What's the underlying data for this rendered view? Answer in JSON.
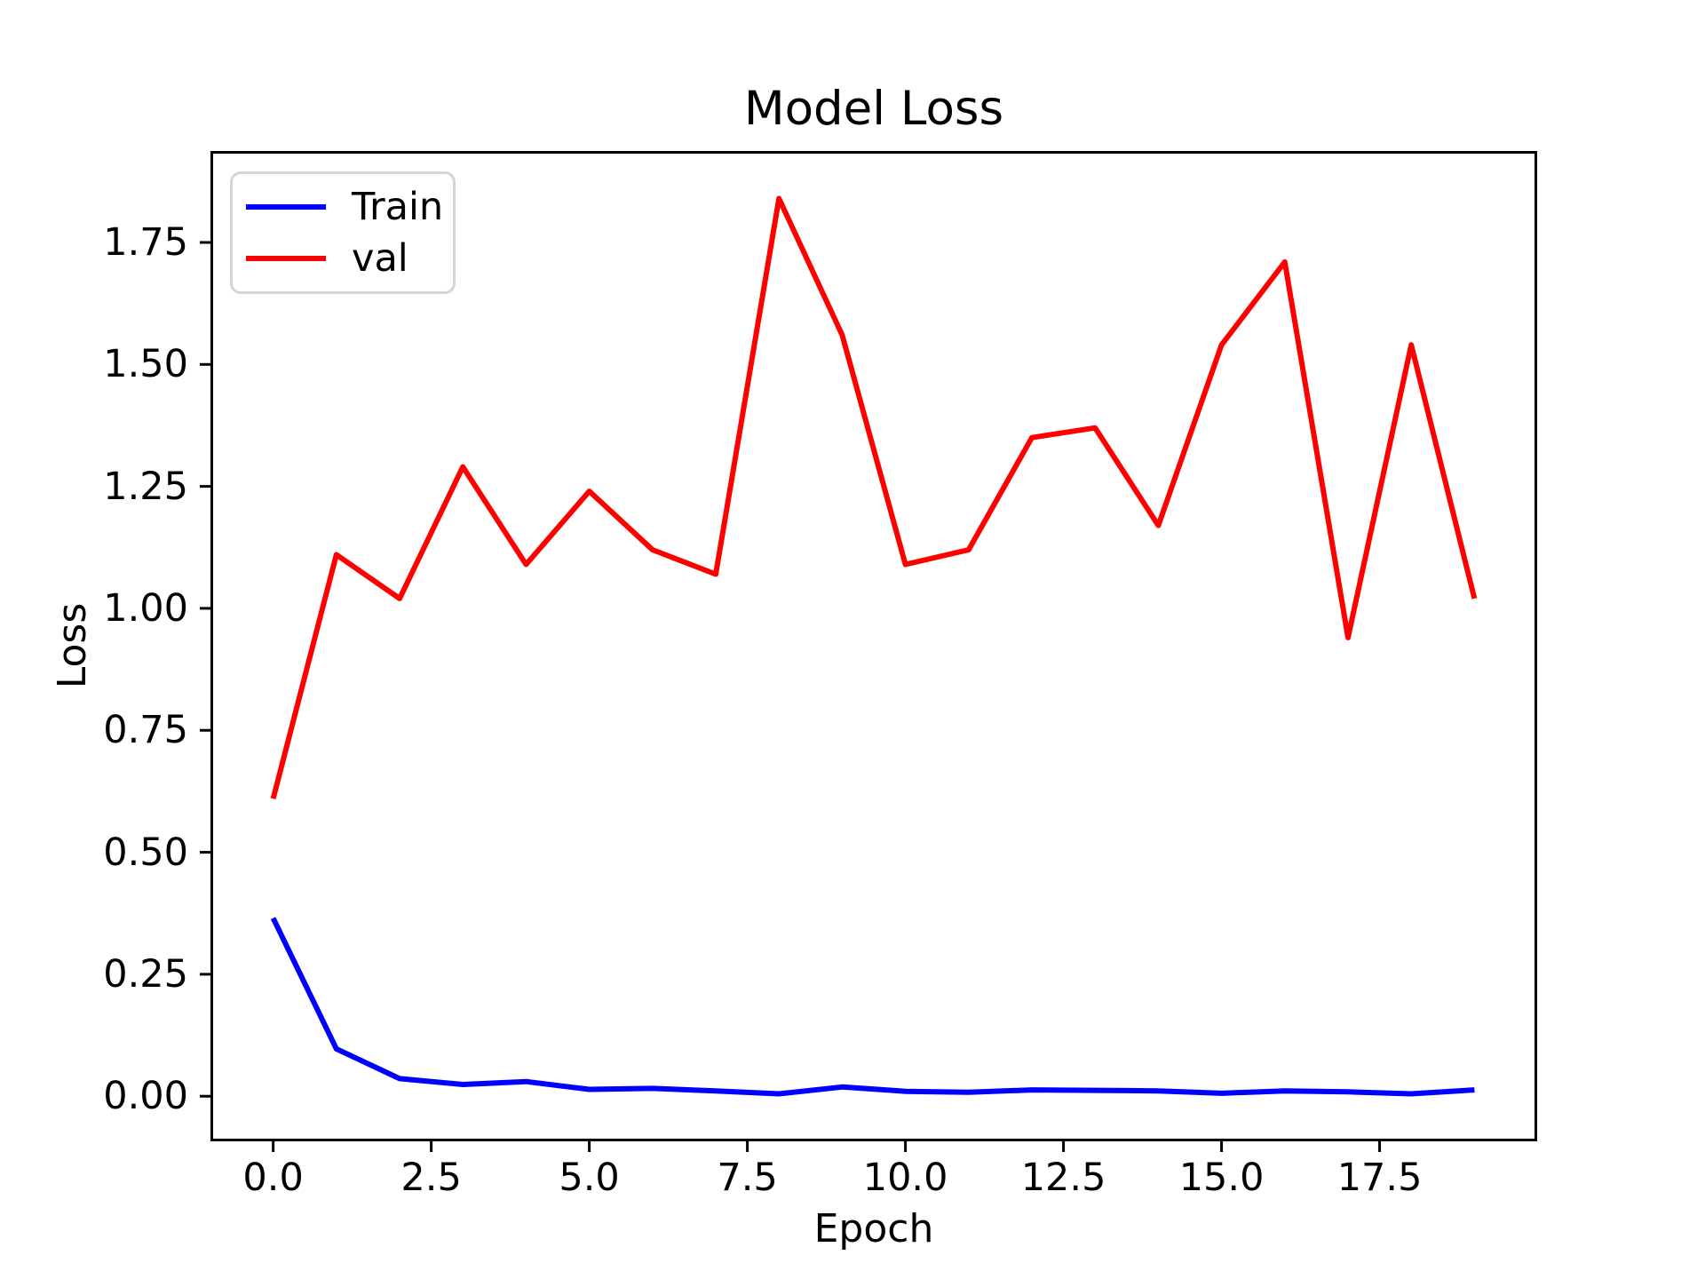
{
  "chart_data": {
    "type": "line",
    "title": "Model Loss",
    "xlabel": "Epoch",
    "ylabel": "Loss",
    "x": [
      0,
      1,
      2,
      3,
      4,
      5,
      6,
      7,
      8,
      9,
      10,
      11,
      12,
      13,
      14,
      15,
      16,
      17,
      18,
      19
    ],
    "series": [
      {
        "name": "Train",
        "color": "#0000ff",
        "values": [
          0.365,
          0.097,
          0.036,
          0.024,
          0.03,
          0.014,
          0.016,
          0.011,
          0.005,
          0.019,
          0.01,
          0.008,
          0.013,
          0.012,
          0.011,
          0.006,
          0.011,
          0.009,
          0.005,
          0.013
        ]
      },
      {
        "name": "val",
        "color": "#ff0000",
        "values": [
          0.61,
          1.11,
          1.02,
          1.29,
          1.09,
          1.24,
          1.12,
          1.07,
          1.84,
          1.56,
          1.09,
          1.12,
          1.35,
          1.37,
          1.17,
          1.54,
          1.71,
          0.94,
          1.54,
          1.02
        ]
      }
    ],
    "xlim": [
      -0.95,
      19.95
    ],
    "ylim": [
      -0.087,
      1.932
    ],
    "xticks": {
      "values": [
        0,
        2.5,
        5,
        7.5,
        10,
        12.5,
        15,
        17.5
      ],
      "labels": [
        "0.0",
        "2.5",
        "5.0",
        "7.5",
        "10.0",
        "12.5",
        "15.0",
        "17.5"
      ]
    },
    "yticks": {
      "values": [
        0,
        0.25,
        0.5,
        0.75,
        1.0,
        1.25,
        1.5,
        1.75
      ],
      "labels": [
        "0.00",
        "0.25",
        "0.50",
        "0.75",
        "1.00",
        "1.25",
        "1.50",
        "1.75"
      ]
    },
    "grid": false,
    "legend_position": "upper left"
  },
  "colors": {
    "spine": "#000000",
    "text": "#000000",
    "legend_border": "#d5d5d5",
    "background": "#ffffff"
  }
}
